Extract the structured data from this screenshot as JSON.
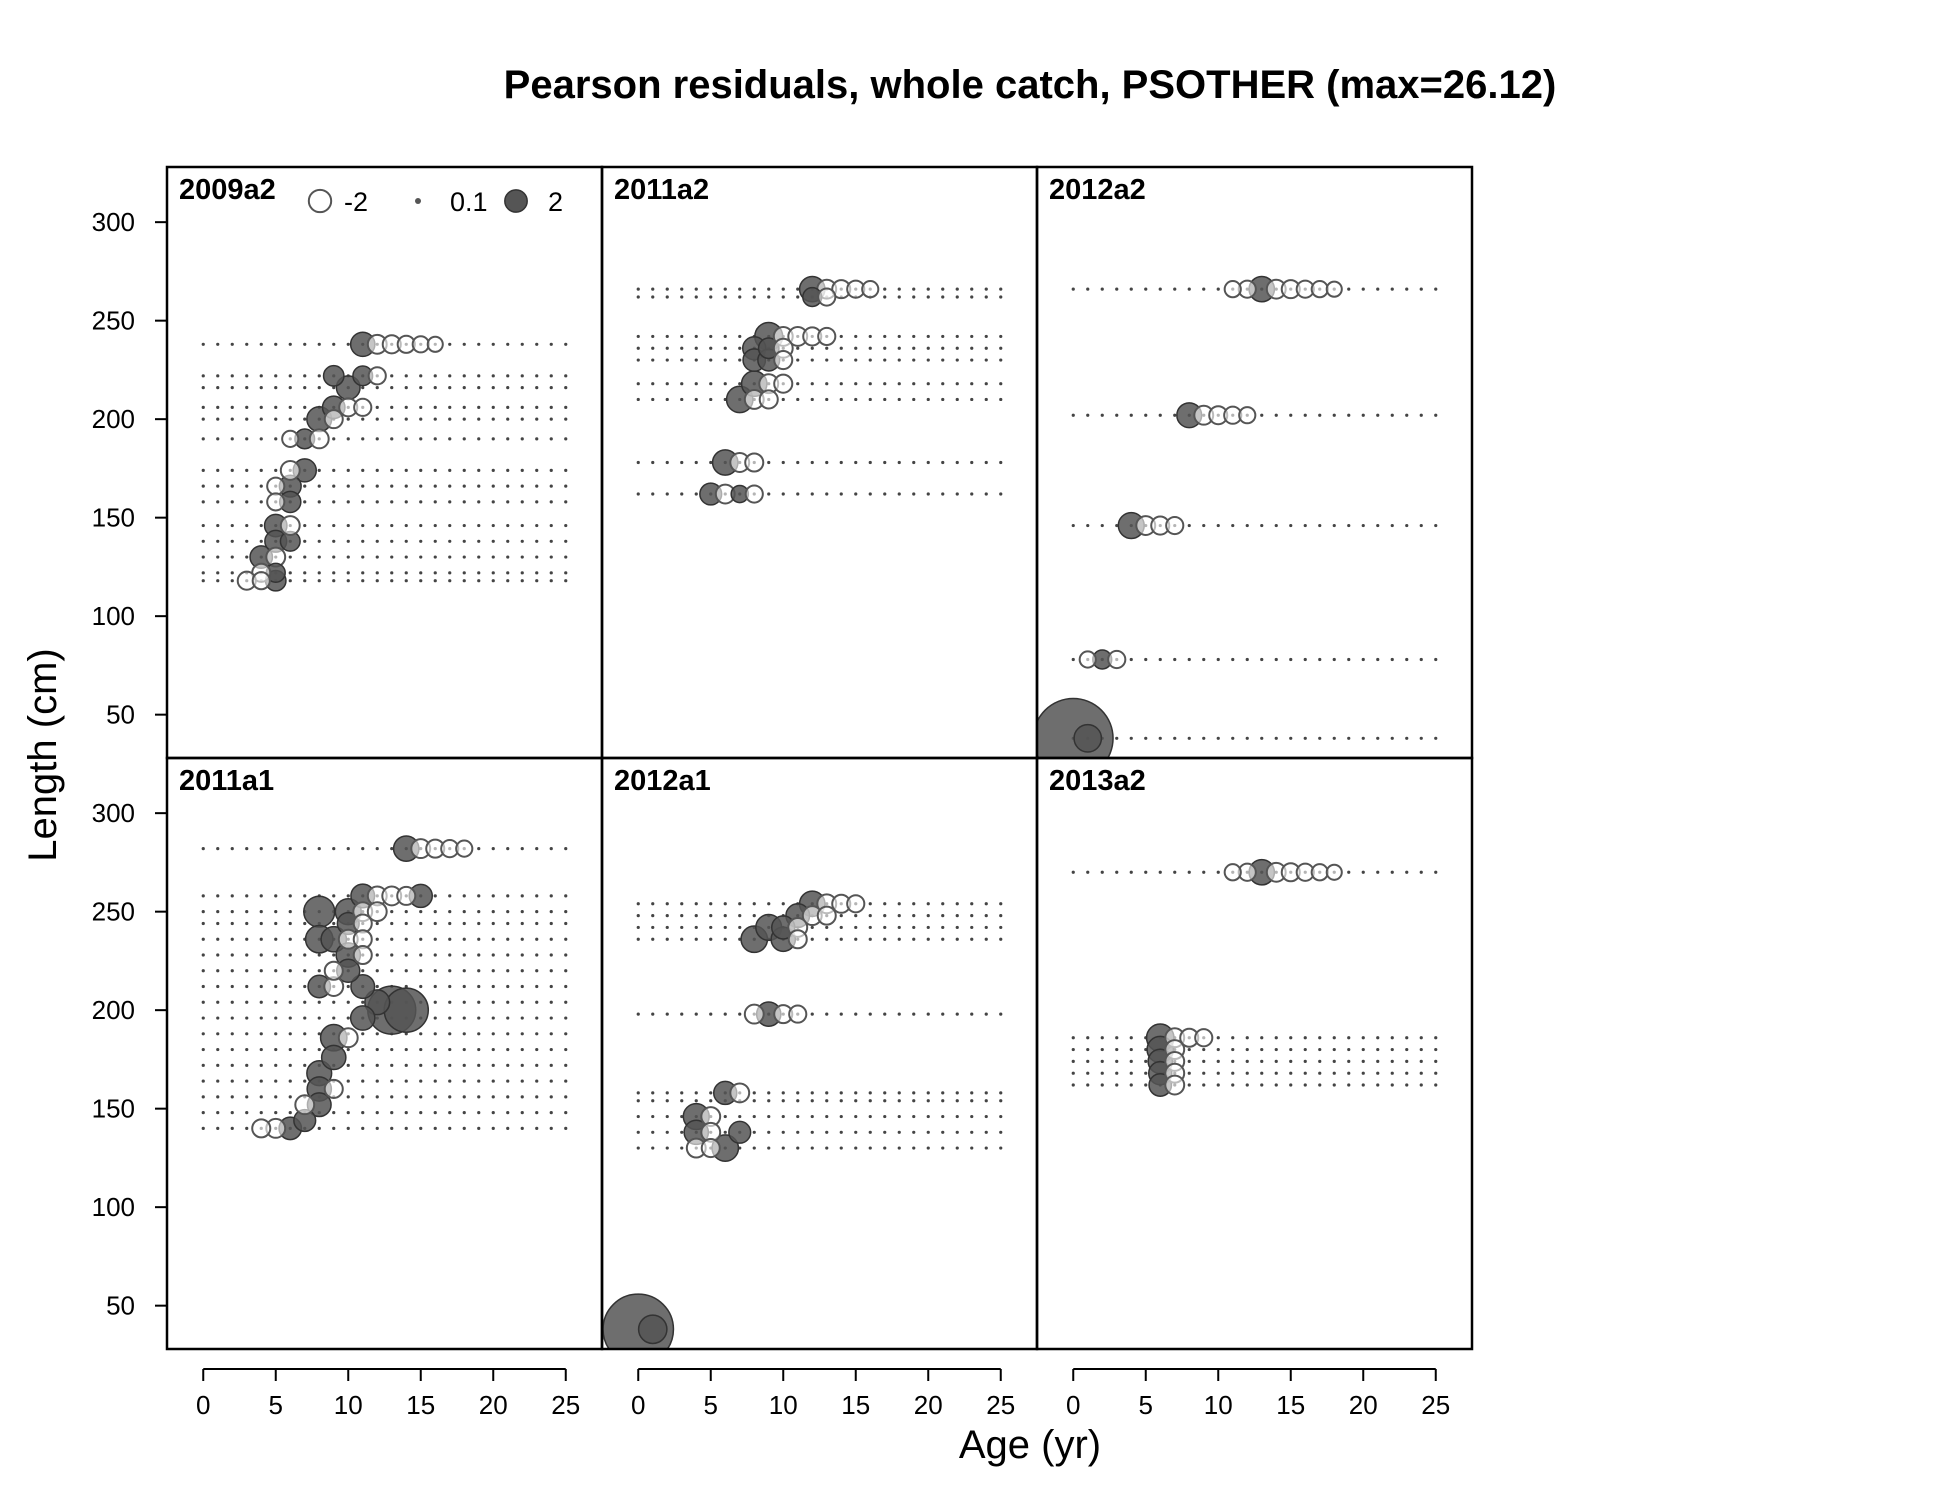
{
  "figure": {
    "title": "Pearson residuals, whole catch, PSOTHER (max=26.12)",
    "xlabel": "Age (yr)",
    "ylabel": "Length (cm)"
  },
  "legend": {
    "labels": [
      "-2",
      "0.1",
      "2"
    ],
    "values": [
      -2,
      0.1,
      2
    ]
  },
  "colors": {
    "positive_fill": "#555555",
    "negative_stroke": "#555555",
    "frame": "#000000",
    "dot": "#444444"
  },
  "chart_data": {
    "type": "scatter",
    "subtype": "bubble",
    "x_ticks": [
      0,
      5,
      10,
      15,
      20,
      25
    ],
    "y_ticks": [
      50,
      100,
      150,
      200,
      250,
      300
    ],
    "xlim": [
      -2.5,
      27.5
    ],
    "ylim": [
      28,
      328
    ],
    "grid": false,
    "legend_position": "top-left of first panel",
    "encoding": "bubble area proportional to |residual|; filled = positive, open = negative",
    "panels": [
      {
        "label": "2009a2",
        "rows": [
          238,
          222,
          216,
          206,
          200,
          190,
          174,
          166,
          158,
          146,
          138,
          130,
          122,
          118
        ],
        "points": [
          {
            "x": 11,
            "y": 238,
            "r": 1.6
          },
          {
            "x": 12,
            "y": 238,
            "r": -0.8
          },
          {
            "x": 13,
            "y": 238,
            "r": -0.7
          },
          {
            "x": 14,
            "y": 238,
            "r": -0.6
          },
          {
            "x": 15,
            "y": 238,
            "r": -0.5
          },
          {
            "x": 16,
            "y": 238,
            "r": -0.4
          },
          {
            "x": 9,
            "y": 222,
            "r": 1.0
          },
          {
            "x": 11,
            "y": 222,
            "r": 0.9
          },
          {
            "x": 12,
            "y": 222,
            "r": -0.6
          },
          {
            "x": 10,
            "y": 216,
            "r": 1.5
          },
          {
            "x": 9,
            "y": 206,
            "r": 1.3
          },
          {
            "x": 10,
            "y": 206,
            "r": -0.7
          },
          {
            "x": 11,
            "y": 206,
            "r": -0.6
          },
          {
            "x": 8,
            "y": 200,
            "r": 1.7
          },
          {
            "x": 9,
            "y": 200,
            "r": -0.7
          },
          {
            "x": 7,
            "y": 190,
            "r": 0.9
          },
          {
            "x": 8,
            "y": 190,
            "r": -0.8
          },
          {
            "x": 6,
            "y": 190,
            "r": -0.5
          },
          {
            "x": 7,
            "y": 174,
            "r": 1.4
          },
          {
            "x": 6,
            "y": 174,
            "r": -0.8
          },
          {
            "x": 6,
            "y": 166,
            "r": 1.2
          },
          {
            "x": 5,
            "y": 166,
            "r": -0.6
          },
          {
            "x": 6,
            "y": 158,
            "r": 1.1
          },
          {
            "x": 5,
            "y": 158,
            "r": -0.6
          },
          {
            "x": 5,
            "y": 146,
            "r": 1.3
          },
          {
            "x": 6,
            "y": 146,
            "r": -0.8
          },
          {
            "x": 5,
            "y": 138,
            "r": 1.2
          },
          {
            "x": 6,
            "y": 138,
            "r": 0.9
          },
          {
            "x": 4,
            "y": 130,
            "r": 1.3
          },
          {
            "x": 5,
            "y": 130,
            "r": -0.8
          },
          {
            "x": 5,
            "y": 122,
            "r": 0.8
          },
          {
            "x": 4,
            "y": 122,
            "r": -0.7
          },
          {
            "x": 5,
            "y": 118,
            "r": 1.0
          },
          {
            "x": 3,
            "y": 118,
            "r": -0.7
          },
          {
            "x": 4,
            "y": 118,
            "r": -0.6
          }
        ]
      },
      {
        "label": "2011a2",
        "rows": [
          266,
          262,
          242,
          236,
          230,
          218,
          210,
          178,
          162
        ],
        "points": [
          {
            "x": 12,
            "y": 266,
            "r": 1.8
          },
          {
            "x": 13,
            "y": 266,
            "r": -0.8
          },
          {
            "x": 14,
            "y": 266,
            "r": -0.7
          },
          {
            "x": 15,
            "y": 266,
            "r": -0.6
          },
          {
            "x": 16,
            "y": 266,
            "r": -0.5
          },
          {
            "x": 12,
            "y": 262,
            "r": 0.8
          },
          {
            "x": 13,
            "y": 262,
            "r": -0.6
          },
          {
            "x": 9,
            "y": 242,
            "r": 2.3
          },
          {
            "x": 10,
            "y": 242,
            "r": -0.8
          },
          {
            "x": 11,
            "y": 242,
            "r": -0.8
          },
          {
            "x": 12,
            "y": 242,
            "r": -0.7
          },
          {
            "x": 13,
            "y": 242,
            "r": -0.6
          },
          {
            "x": 8,
            "y": 236,
            "r": 1.4
          },
          {
            "x": 9,
            "y": 236,
            "r": 1.0
          },
          {
            "x": 10,
            "y": 236,
            "r": -0.8
          },
          {
            "x": 8,
            "y": 230,
            "r": 1.3
          },
          {
            "x": 9,
            "y": 230,
            "r": 1.2
          },
          {
            "x": 10,
            "y": 230,
            "r": -0.7
          },
          {
            "x": 8,
            "y": 218,
            "r": 1.8
          },
          {
            "x": 9,
            "y": 218,
            "r": -0.8
          },
          {
            "x": 10,
            "y": 218,
            "r": -0.7
          },
          {
            "x": 7,
            "y": 210,
            "r": 2.0
          },
          {
            "x": 8,
            "y": 210,
            "r": -0.8
          },
          {
            "x": 9,
            "y": 210,
            "r": -0.7
          },
          {
            "x": 6,
            "y": 178,
            "r": 1.8
          },
          {
            "x": 7,
            "y": 178,
            "r": -0.8
          },
          {
            "x": 8,
            "y": 178,
            "r": -0.7
          },
          {
            "x": 5,
            "y": 162,
            "r": 1.2
          },
          {
            "x": 6,
            "y": 162,
            "r": -0.8
          },
          {
            "x": 7,
            "y": 162,
            "r": 0.6
          },
          {
            "x": 8,
            "y": 162,
            "r": -0.6
          }
        ]
      },
      {
        "label": "2012a2",
        "rows": [
          266,
          202,
          146,
          78,
          38
        ],
        "points": [
          {
            "x": 13,
            "y": 266,
            "r": 1.8
          },
          {
            "x": 14,
            "y": 266,
            "r": -0.8
          },
          {
            "x": 15,
            "y": 266,
            "r": -0.7
          },
          {
            "x": 16,
            "y": 266,
            "r": -0.6
          },
          {
            "x": 17,
            "y": 266,
            "r": -0.5
          },
          {
            "x": 18,
            "y": 266,
            "r": -0.4
          },
          {
            "x": 11,
            "y": 266,
            "r": -0.5
          },
          {
            "x": 12,
            "y": 266,
            "r": -0.6
          },
          {
            "x": 8,
            "y": 202,
            "r": 1.7
          },
          {
            "x": 9,
            "y": 202,
            "r": -0.8
          },
          {
            "x": 10,
            "y": 202,
            "r": -0.7
          },
          {
            "x": 11,
            "y": 202,
            "r": -0.6
          },
          {
            "x": 12,
            "y": 202,
            "r": -0.5
          },
          {
            "x": 4,
            "y": 146,
            "r": 1.9
          },
          {
            "x": 5,
            "y": 146,
            "r": -0.8
          },
          {
            "x": 6,
            "y": 146,
            "r": -0.7
          },
          {
            "x": 7,
            "y": 146,
            "r": -0.6
          },
          {
            "x": 2,
            "y": 78,
            "r": 0.8
          },
          {
            "x": 1,
            "y": 78,
            "r": -0.5
          },
          {
            "x": 3,
            "y": 78,
            "r": -0.6
          },
          {
            "x": 0,
            "y": 38,
            "r": 26.12
          },
          {
            "x": 1,
            "y": 38,
            "r": 2.2
          }
        ]
      },
      {
        "label": "2011a1",
        "rows": [
          282,
          258,
          250,
          244,
          236,
          228,
          220,
          212,
          204,
          196,
          188,
          180,
          172,
          164,
          156,
          148,
          140
        ],
        "points": [
          {
            "x": 14,
            "y": 282,
            "r": 1.8
          },
          {
            "x": 15,
            "y": 282,
            "r": -0.8
          },
          {
            "x": 16,
            "y": 282,
            "r": -0.7
          },
          {
            "x": 17,
            "y": 282,
            "r": -0.6
          },
          {
            "x": 18,
            "y": 282,
            "r": -0.5
          },
          {
            "x": 11,
            "y": 258,
            "r": 1.5
          },
          {
            "x": 15,
            "y": 258,
            "r": 1.4
          },
          {
            "x": 12,
            "y": 258,
            "r": -0.8
          },
          {
            "x": 13,
            "y": 258,
            "r": -0.8
          },
          {
            "x": 14,
            "y": 258,
            "r": -0.7
          },
          {
            "x": 8,
            "y": 250,
            "r": 3.0
          },
          {
            "x": 10,
            "y": 250,
            "r": 1.9
          },
          {
            "x": 11,
            "y": 250,
            "r": -0.8
          },
          {
            "x": 12,
            "y": 250,
            "r": -0.8
          },
          {
            "x": 10,
            "y": 244,
            "r": 1.2
          },
          {
            "x": 11,
            "y": 244,
            "r": -0.7
          },
          {
            "x": 8,
            "y": 236,
            "r": 2.2
          },
          {
            "x": 9,
            "y": 236,
            "r": 1.8
          },
          {
            "x": 10,
            "y": 236,
            "r": -0.8
          },
          {
            "x": 11,
            "y": 236,
            "r": -0.7
          },
          {
            "x": 10,
            "y": 228,
            "r": 1.6
          },
          {
            "x": 11,
            "y": 228,
            "r": -0.7
          },
          {
            "x": 10,
            "y": 220,
            "r": 1.4
          },
          {
            "x": 9,
            "y": 220,
            "r": -0.7
          },
          {
            "x": 8,
            "y": 212,
            "r": 1.3
          },
          {
            "x": 11,
            "y": 212,
            "r": 1.5
          },
          {
            "x": 9,
            "y": 212,
            "r": -0.8
          },
          {
            "x": 13,
            "y": 200,
            "r": 8.5
          },
          {
            "x": 14,
            "y": 200,
            "r": 7.0
          },
          {
            "x": 12,
            "y": 204,
            "r": 1.7
          },
          {
            "x": 11,
            "y": 196,
            "r": 1.6
          },
          {
            "x": 9,
            "y": 186,
            "r": 2.0
          },
          {
            "x": 10,
            "y": 186,
            "r": -0.8
          },
          {
            "x": 9,
            "y": 176,
            "r": 1.6
          },
          {
            "x": 8,
            "y": 168,
            "r": 1.7
          },
          {
            "x": 8,
            "y": 160,
            "r": 1.6
          },
          {
            "x": 9,
            "y": 160,
            "r": -0.7
          },
          {
            "x": 8,
            "y": 152,
            "r": 1.5
          },
          {
            "x": 7,
            "y": 152,
            "r": -0.8
          },
          {
            "x": 7,
            "y": 144,
            "r": 1.2
          },
          {
            "x": 6,
            "y": 140,
            "r": 1.3
          },
          {
            "x": 5,
            "y": 140,
            "r": -0.8
          },
          {
            "x": 4,
            "y": 140,
            "r": -0.7
          }
        ]
      },
      {
        "label": "2012a1",
        "rows": [
          254,
          248,
          242,
          236,
          198,
          158,
          154,
          146,
          138,
          130
        ],
        "points": [
          {
            "x": 12,
            "y": 254,
            "r": 1.8
          },
          {
            "x": 13,
            "y": 254,
            "r": -0.8
          },
          {
            "x": 14,
            "y": 254,
            "r": -0.7
          },
          {
            "x": 15,
            "y": 254,
            "r": -0.6
          },
          {
            "x": 11,
            "y": 248,
            "r": 1.5
          },
          {
            "x": 12,
            "y": 248,
            "r": -0.8
          },
          {
            "x": 13,
            "y": 248,
            "r": -0.7
          },
          {
            "x": 9,
            "y": 242,
            "r": 1.9
          },
          {
            "x": 10,
            "y": 242,
            "r": 1.4
          },
          {
            "x": 11,
            "y": 242,
            "r": -0.8
          },
          {
            "x": 8,
            "y": 236,
            "r": 2.0
          },
          {
            "x": 10,
            "y": 236,
            "r": 1.6
          },
          {
            "x": 11,
            "y": 236,
            "r": -0.7
          },
          {
            "x": 9,
            "y": 198,
            "r": 1.6
          },
          {
            "x": 8,
            "y": 198,
            "r": -0.8
          },
          {
            "x": 10,
            "y": 198,
            "r": -0.7
          },
          {
            "x": 11,
            "y": 198,
            "r": -0.6
          },
          {
            "x": 6,
            "y": 158,
            "r": 1.4
          },
          {
            "x": 7,
            "y": 158,
            "r": -0.8
          },
          {
            "x": 4,
            "y": 146,
            "r": 1.9
          },
          {
            "x": 5,
            "y": 146,
            "r": -0.8
          },
          {
            "x": 4,
            "y": 138,
            "r": 1.6
          },
          {
            "x": 7,
            "y": 138,
            "r": 1.2
          },
          {
            "x": 5,
            "y": 138,
            "r": -0.8
          },
          {
            "x": 6,
            "y": 130,
            "r": 2.0
          },
          {
            "x": 4,
            "y": 130,
            "r": -0.8
          },
          {
            "x": 5,
            "y": 130,
            "r": -0.7
          },
          {
            "x": 0,
            "y": 38,
            "r": 20.0
          },
          {
            "x": 1,
            "y": 38,
            "r": 2.4
          }
        ]
      },
      {
        "label": "2013a2",
        "rows": [
          270,
          186,
          180,
          174,
          168,
          162
        ],
        "points": [
          {
            "x": 13,
            "y": 270,
            "r": 1.8
          },
          {
            "x": 14,
            "y": 270,
            "r": -0.8
          },
          {
            "x": 15,
            "y": 270,
            "r": -0.7
          },
          {
            "x": 16,
            "y": 270,
            "r": -0.6
          },
          {
            "x": 17,
            "y": 270,
            "r": -0.5
          },
          {
            "x": 18,
            "y": 270,
            "r": -0.4
          },
          {
            "x": 11,
            "y": 270,
            "r": -0.5
          },
          {
            "x": 12,
            "y": 270,
            "r": -0.6
          },
          {
            "x": 6,
            "y": 186,
            "r": 2.2
          },
          {
            "x": 7,
            "y": 186,
            "r": -0.8
          },
          {
            "x": 8,
            "y": 186,
            "r": -0.7
          },
          {
            "x": 9,
            "y": 186,
            "r": -0.6
          },
          {
            "x": 6,
            "y": 180,
            "r": 2.0
          },
          {
            "x": 7,
            "y": 180,
            "r": -0.8
          },
          {
            "x": 6,
            "y": 174,
            "r": 1.6
          },
          {
            "x": 7,
            "y": 174,
            "r": -0.8
          },
          {
            "x": 6,
            "y": 168,
            "r": 1.4
          },
          {
            "x": 7,
            "y": 168,
            "r": -0.8
          },
          {
            "x": 6,
            "y": 162,
            "r": 1.3
          },
          {
            "x": 7,
            "y": 162,
            "r": -0.8
          }
        ]
      }
    ]
  }
}
